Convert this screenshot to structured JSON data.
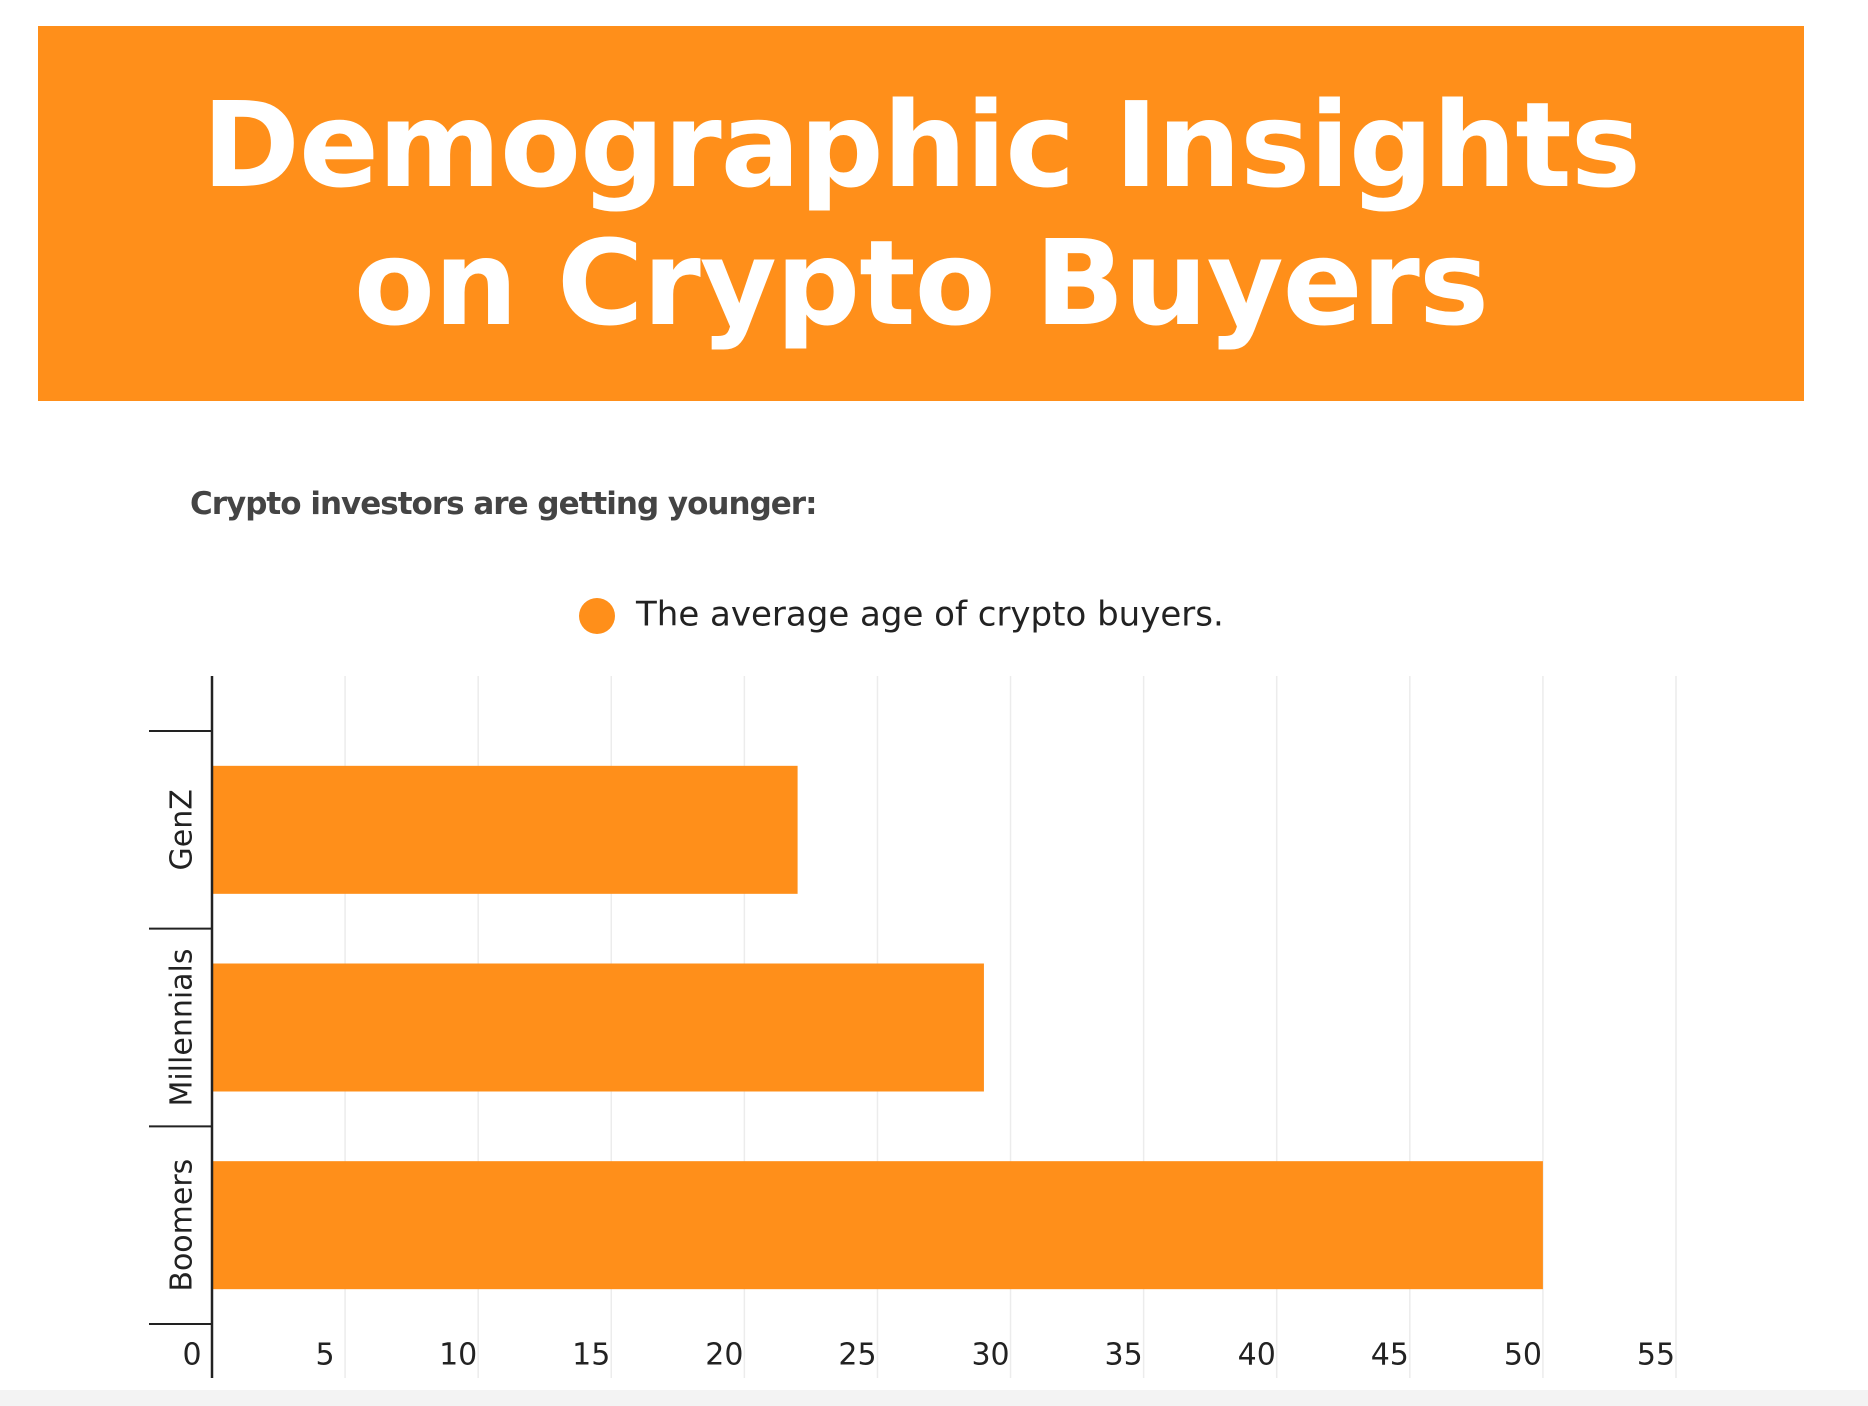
{
  "title": "Demographic Insights on Crypto Buyers",
  "subtitle": "Crypto investors are getting younger:",
  "chart_data": {
    "type": "bar",
    "orientation": "horizontal",
    "categories": [
      "GenZ",
      "Millennials",
      "Boomers"
    ],
    "series": [
      {
        "name": "The average age of crypto buyers.",
        "color": "#ff8f1a",
        "values": [
          22,
          29,
          50
        ]
      }
    ],
    "xlim": [
      0,
      55
    ],
    "xticks": [
      0,
      5,
      10,
      15,
      20,
      25,
      30,
      35,
      40,
      45,
      50,
      55
    ],
    "grid": true
  }
}
